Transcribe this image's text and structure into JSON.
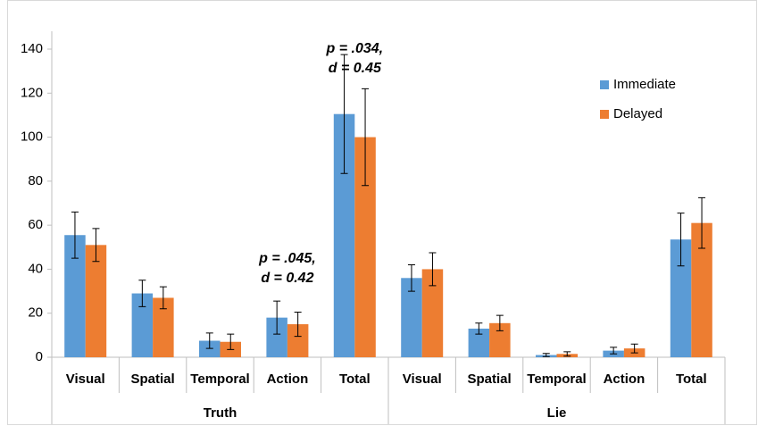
{
  "chart_data": {
    "type": "bar",
    "groups": [
      {
        "name": "Truth",
        "categories": [
          "Visual",
          "Spatial",
          "Temporal",
          "Action",
          "Total"
        ]
      },
      {
        "name": "Lie",
        "categories": [
          "Visual",
          "Spatial",
          "Temporal",
          "Action",
          "Total"
        ]
      }
    ],
    "series": [
      {
        "name": "Immediate",
        "color": "#5b9bd5",
        "values": [
          55.5,
          29,
          7.5,
          18,
          110.5,
          36,
          13,
          1,
          3,
          53.5
        ],
        "errors": [
          10.5,
          6,
          3.5,
          7.5,
          27,
          6,
          2.5,
          0.7,
          1.5,
          12
        ]
      },
      {
        "name": "Delayed",
        "color": "#ed7d31",
        "values": [
          51,
          27,
          7,
          15,
          100,
          40,
          15.5,
          1.5,
          4,
          61
        ],
        "errors": [
          7.5,
          5,
          3.5,
          5.5,
          22,
          7.5,
          3.5,
          1,
          2,
          11.5
        ]
      }
    ],
    "annotations": [
      {
        "lines": [
          "p = .045,",
          "d = 0.42"
        ]
      },
      {
        "lines": [
          "p = .034,",
          "d = 0.45"
        ]
      }
    ],
    "ylim": [
      0,
      140
    ],
    "yticks": [
      0,
      20,
      40,
      60,
      80,
      100,
      120,
      140
    ],
    "legend": "right"
  }
}
